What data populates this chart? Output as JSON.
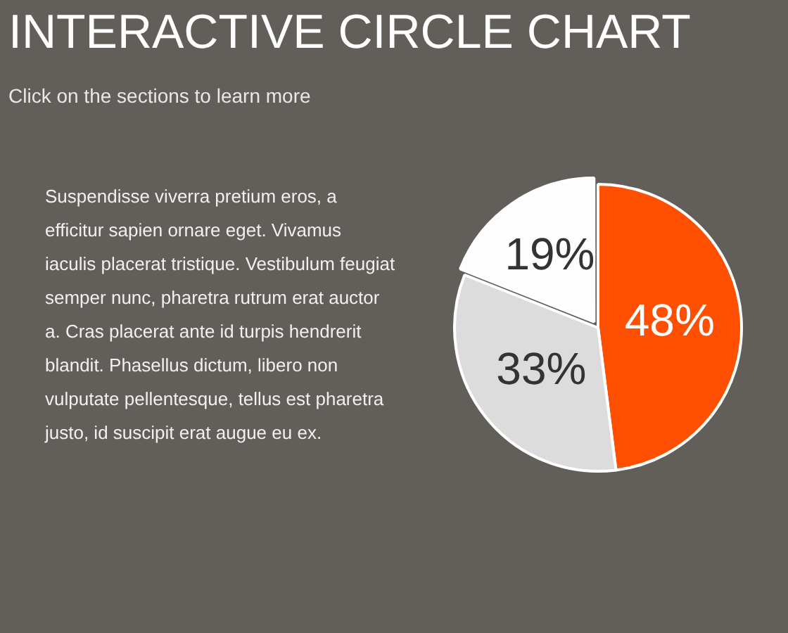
{
  "chart_data": {
    "type": "pie",
    "title": "INTERACTIVE CIRCLE CHART",
    "subtitle": "Click on the sections to learn more",
    "annotations": [
      "Suspendisse viverra pretium eros, a efficitur sapien ornare eget. Vivamus iaculis placerat tristique. Vestibulum feugiat semper nunc, pharetra rutrum erat auctor a. Cras placerat ante id turpis hendrerit blandit. Phasellus dictum, libero non vulputate pellentesque, tellus est pharetra justo, id suscipit erat augue eu ex."
    ],
    "categories": [
      null,
      null,
      null
    ],
    "values": [
      48,
      33,
      19
    ],
    "colors": [
      "#fe5000",
      "#dcdcdc",
      "#fdfdfd"
    ],
    "value_labels": [
      "48%",
      "33%",
      "19%"
    ],
    "legend": false
  }
}
